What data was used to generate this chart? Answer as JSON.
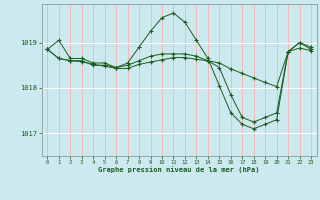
{
  "title": "Graphe pression niveau de la mer (hPa)",
  "background_color": "#cce9f0",
  "grid_color": "#ffffff",
  "vgrid_color": "#f5b8b8",
  "line_color": "#1a5c1a",
  "x_ticks": [
    0,
    1,
    2,
    3,
    4,
    5,
    6,
    7,
    8,
    9,
    10,
    11,
    12,
    13,
    14,
    15,
    16,
    17,
    18,
    19,
    20,
    21,
    22,
    23
  ],
  "y_ticks": [
    1017,
    1018,
    1019
  ],
  "ylim": [
    1016.5,
    1019.85
  ],
  "xlim": [
    -0.5,
    23.5
  ],
  "series": [
    [
      1018.85,
      1019.05,
      1018.65,
      1018.65,
      1018.55,
      1018.55,
      1018.45,
      1018.55,
      1018.9,
      1019.25,
      1019.55,
      1019.65,
      1019.45,
      1019.05,
      1018.65,
      1018.05,
      1017.45,
      1017.2,
      1017.1,
      1017.2,
      1017.3,
      1018.8,
      1019.0,
      1018.85
    ],
    [
      1018.85,
      1018.65,
      1018.6,
      1018.6,
      1018.5,
      1018.5,
      1018.45,
      1018.5,
      1018.6,
      1018.7,
      1018.75,
      1018.75,
      1018.75,
      1018.7,
      1018.6,
      1018.45,
      1017.85,
      1017.35,
      1017.25,
      1017.35,
      1017.45,
      1018.8,
      1019.0,
      1018.9
    ],
    [
      1018.85,
      1018.65,
      1018.6,
      1018.58,
      1018.52,
      1018.48,
      1018.43,
      1018.43,
      1018.52,
      1018.57,
      1018.62,
      1018.67,
      1018.67,
      1018.63,
      1018.6,
      1018.55,
      1018.42,
      1018.32,
      1018.22,
      1018.12,
      1018.03,
      1018.8,
      1018.88,
      1018.82
    ]
  ]
}
